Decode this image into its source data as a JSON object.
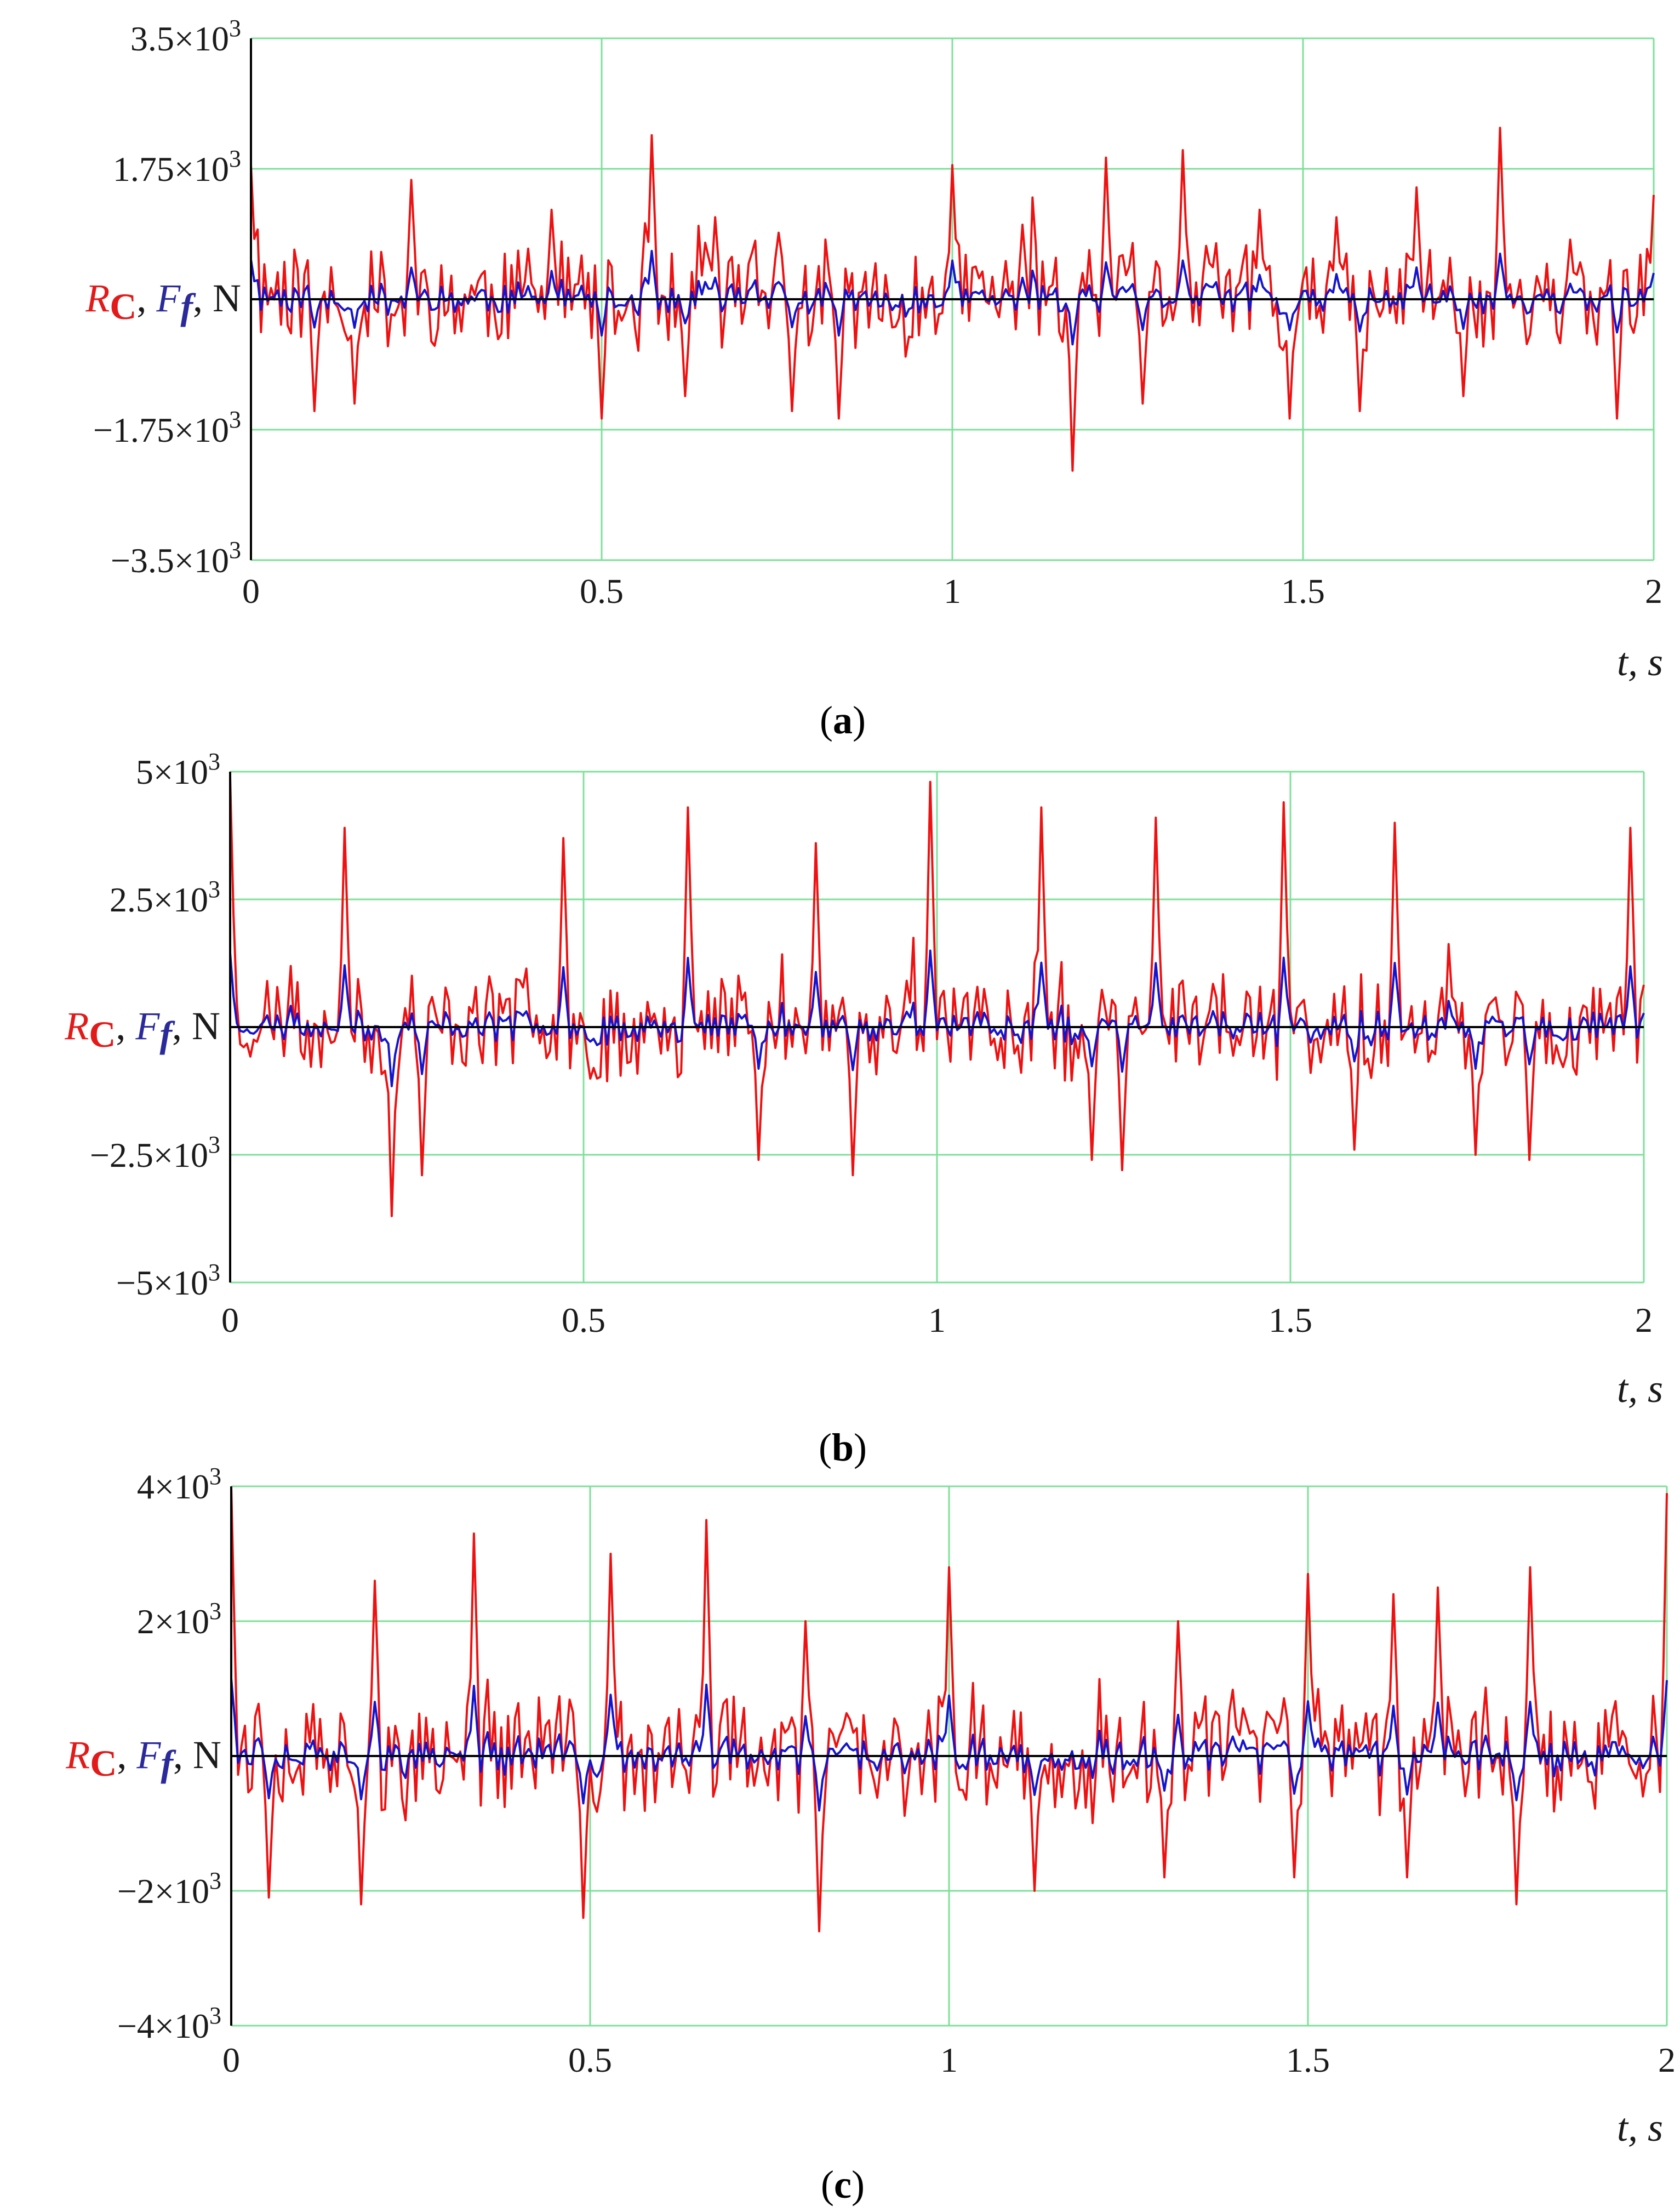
{
  "colors": {
    "rc": "#ee1111",
    "ff": "#1414cc",
    "grid": "#7ee09a",
    "axis": "#000000"
  },
  "chart_data": [
    {
      "panel": "a",
      "type": "line",
      "caption_open": "(",
      "caption_letter": "a",
      "caption_close": ")",
      "ylabel": {
        "r": "R",
        "r_sub": "C",
        "sep1": ", ",
        "f": "F",
        "f_sub": "f",
        "sep2": ", N"
      },
      "xlabel": "t, s",
      "xlim": [
        0,
        2
      ],
      "ylim": [
        -3500,
        3500
      ],
      "xticks": [
        0,
        0.5,
        1,
        1.5,
        2
      ],
      "xtick_labels": [
        "0",
        "0.5",
        "1",
        "1.5",
        "2"
      ],
      "yticks": [
        3500,
        1750,
        -1750,
        -3500
      ],
      "ytick_mantissa": [
        "3.5×10",
        "1.75×10",
        "−1.75×10",
        "−3.5×10"
      ],
      "ytick_exp": "3",
      "seed": 11,
      "peaks": [
        [
          0.0,
          1800
        ],
        [
          0.23,
          1600
        ],
        [
          0.43,
          1200
        ],
        [
          0.57,
          2200
        ],
        [
          0.66,
          1100
        ],
        [
          1.0,
          1800
        ],
        [
          1.1,
          1000
        ],
        [
          1.22,
          1900
        ],
        [
          1.33,
          2000
        ],
        [
          1.44,
          1200
        ],
        [
          1.55,
          1100
        ],
        [
          1.66,
          1500
        ],
        [
          1.78,
          2300
        ],
        [
          1.88,
          800
        ],
        [
          2.0,
          1400
        ]
      ],
      "troughs": [
        [
          0.09,
          -1500
        ],
        [
          0.15,
          -1400
        ],
        [
          0.5,
          -1600
        ],
        [
          0.62,
          -1300
        ],
        [
          0.77,
          -1500
        ],
        [
          0.84,
          -1600
        ],
        [
          1.17,
          -2300
        ],
        [
          1.27,
          -1400
        ],
        [
          1.48,
          -1600
        ],
        [
          1.58,
          -1500
        ],
        [
          1.73,
          -1300
        ],
        [
          1.95,
          -1600
        ]
      ],
      "series": [
        {
          "name": "R_C",
          "color": "#ee1111",
          "amp": 650,
          "scale": 1.0
        },
        {
          "name": "F_f",
          "color": "#1414cc",
          "amp": 150,
          "scale": 0.28
        }
      ]
    },
    {
      "panel": "b",
      "type": "line",
      "caption_open": "(",
      "caption_letter": "b",
      "caption_close": ")",
      "ylabel": {
        "r": "R",
        "r_sub": "C",
        "sep1": ", ",
        "f": "F",
        "f_sub": "f",
        "sep2": ", N"
      },
      "xlabel": "t, s",
      "xlim": [
        0,
        2
      ],
      "ylim": [
        -5000,
        5000
      ],
      "xticks": [
        0,
        0.5,
        1,
        1.5,
        2
      ],
      "xtick_labels": [
        "0",
        "0.5",
        "1",
        "1.5",
        "2"
      ],
      "yticks": [
        5000,
        2500,
        -2500,
        -5000
      ],
      "ytick_mantissa": [
        "5×10",
        "2.5×10",
        "−2.5×10",
        "−5×10"
      ],
      "ytick_exp": "3",
      "seed": 23,
      "peaks": [
        [
          0.0,
          4900
        ],
        [
          0.16,
          3900
        ],
        [
          0.47,
          3700
        ],
        [
          0.65,
          4300
        ],
        [
          0.83,
          3600
        ],
        [
          0.99,
          4800
        ],
        [
          1.15,
          4300
        ],
        [
          1.31,
          4100
        ],
        [
          1.49,
          4400
        ],
        [
          1.65,
          4000
        ],
        [
          1.98,
          3900
        ]
      ],
      "troughs": [
        [
          0.23,
          -3700
        ],
        [
          0.27,
          -2900
        ],
        [
          0.75,
          -2600
        ],
        [
          0.88,
          -2900
        ],
        [
          1.22,
          -2600
        ],
        [
          1.26,
          -2800
        ],
        [
          1.59,
          -2400
        ],
        [
          1.76,
          -2500
        ],
        [
          1.84,
          -2600
        ]
      ],
      "series": [
        {
          "name": "R_C",
          "color": "#ee1111",
          "amp": 900,
          "scale": 1.0
        },
        {
          "name": "F_f",
          "color": "#1414cc",
          "amp": 220,
          "scale": 0.3
        }
      ]
    },
    {
      "panel": "c",
      "type": "line",
      "caption_open": "(",
      "caption_letter": "c",
      "caption_close": ")",
      "ylabel": {
        "r": "R",
        "r_sub": "C",
        "sep1": ", ",
        "f": "F",
        "f_sub": "f",
        "sep2": ", N"
      },
      "xlabel": "t, s",
      "xlim": [
        0,
        2
      ],
      "ylim": [
        -4000,
        4000
      ],
      "xticks": [
        0,
        0.5,
        1,
        1.5,
        2
      ],
      "xtick_labels": [
        "0",
        "0.5",
        "1",
        "1.5",
        "2"
      ],
      "yticks": [
        4000,
        2000,
        -2000,
        -4000
      ],
      "ytick_mantissa": [
        "4×10",
        "2×10",
        "−2×10",
        "−4×10"
      ],
      "ytick_exp": "3",
      "seed": 37,
      "peaks": [
        [
          0.0,
          4000
        ],
        [
          0.2,
          2600
        ],
        [
          0.34,
          3300
        ],
        [
          0.53,
          3000
        ],
        [
          0.66,
          3500
        ],
        [
          0.8,
          2000
        ],
        [
          1.0,
          2800
        ],
        [
          1.12,
          2300
        ],
        [
          1.32,
          2000
        ],
        [
          1.5,
          2700
        ],
        [
          1.62,
          2400
        ],
        [
          1.68,
          2500
        ],
        [
          1.81,
          2800
        ],
        [
          2.0,
          3900
        ]
      ],
      "troughs": [
        [
          0.05,
          -2100
        ],
        [
          0.18,
          -2200
        ],
        [
          0.49,
          -2400
        ],
        [
          0.82,
          -2600
        ],
        [
          1.12,
          -2000
        ],
        [
          1.3,
          -1800
        ],
        [
          1.48,
          -1800
        ],
        [
          1.64,
          -1800
        ],
        [
          1.79,
          -2200
        ]
      ],
      "series": [
        {
          "name": "R_C",
          "color": "#ee1111",
          "amp": 800,
          "scale": 1.0
        },
        {
          "name": "F_f",
          "color": "#1414cc",
          "amp": 200,
          "scale": 0.3
        }
      ]
    }
  ]
}
